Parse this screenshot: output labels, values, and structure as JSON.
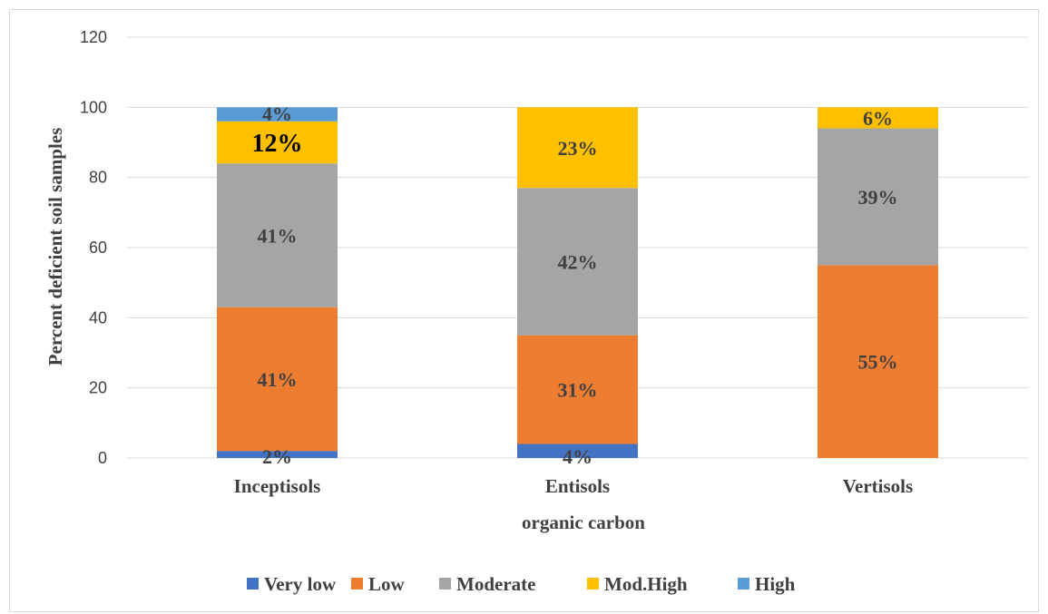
{
  "chart_data": {
    "type": "bar",
    "stacked": true,
    "title": "",
    "xlabel": "organic carbon",
    "ylabel": "Percent deficient soil samples",
    "ylim": [
      0,
      120
    ],
    "yticks": [
      "0",
      "20",
      "40",
      "60",
      "80",
      "100",
      "120"
    ],
    "categories": [
      "Inceptisols",
      "Entisols",
      "Vertisols"
    ],
    "grid": true,
    "legend_position": "bottom",
    "series": [
      {
        "name": "Very low",
        "color": "#4472C4",
        "values": [
          2,
          4,
          0
        ],
        "labels": [
          "2%",
          "4%",
          ""
        ]
      },
      {
        "name": "Low",
        "color": "#ED7D31",
        "values": [
          41,
          31,
          55
        ],
        "labels": [
          "41%",
          "31%",
          "55%"
        ]
      },
      {
        "name": "Moderate",
        "color": "#A5A5A5",
        "values": [
          41,
          42,
          39
        ],
        "labels": [
          "41%",
          "42%",
          "39%"
        ]
      },
      {
        "name": "Mod.High",
        "color": "#FFC000",
        "values": [
          12,
          23,
          6
        ],
        "labels": [
          "12%",
          "23%",
          "6%"
        ]
      },
      {
        "name": "High",
        "color": "#5B9BD5",
        "values": [
          4,
          0,
          0
        ],
        "labels": [
          "4%",
          "",
          ""
        ]
      }
    ]
  }
}
